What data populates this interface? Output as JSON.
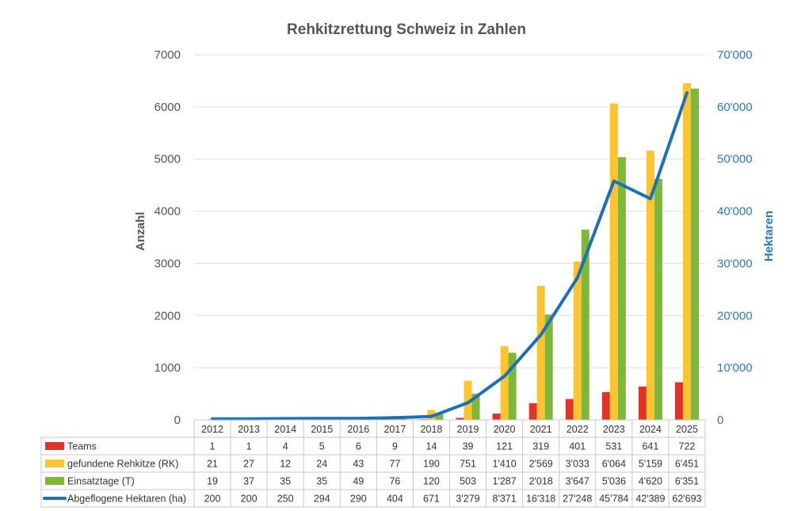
{
  "chart_data": {
    "type": "bar",
    "title": "Rehkitzrettung Schweiz in Zahlen",
    "ylabel": "Anzahl",
    "ylabel_right": "Hektaren",
    "ylim": [
      0,
      7000
    ],
    "ylim_right": [
      0,
      70000
    ],
    "yticks": [
      "0",
      "1000",
      "2000",
      "3000",
      "4000",
      "5000",
      "6000",
      "7000"
    ],
    "yticks_right": [
      "0",
      "10'000",
      "20'000",
      "30'000",
      "40'000",
      "50'000",
      "60'000",
      "70'000"
    ],
    "categories": [
      "2012",
      "2013",
      "2014",
      "2015",
      "2016",
      "2017",
      "2018",
      "2019",
      "2020",
      "2021",
      "2022",
      "2023",
      "2024",
      "2025"
    ],
    "series": [
      {
        "name": "Teams",
        "kind": "bar",
        "axis": "left",
        "color": "#e0342b",
        "values": [
          1,
          1,
          4,
          5,
          6,
          9,
          14,
          39,
          121,
          319,
          401,
          531,
          641,
          722
        ],
        "labels": [
          "1",
          "1",
          "4",
          "5",
          "6",
          "9",
          "14",
          "39",
          "121",
          "319",
          "401",
          "531",
          "641",
          "722"
        ]
      },
      {
        "name": "gefundene Rehkitze (RK)",
        "kind": "bar",
        "axis": "left",
        "color": "#fbc430",
        "values": [
          21,
          27,
          12,
          24,
          43,
          77,
          190,
          751,
          1410,
          2569,
          3033,
          6064,
          5159,
          6451
        ],
        "labels": [
          "21",
          "27",
          "12",
          "24",
          "43",
          "77",
          "190",
          "751",
          "1'410",
          "2'569",
          "3'033",
          "6'064",
          "5'159",
          "6'451"
        ]
      },
      {
        "name": "Einsatztage (T)",
        "kind": "bar",
        "axis": "left",
        "color": "#7db83a",
        "values": [
          19,
          37,
          35,
          35,
          49,
          76,
          120,
          503,
          1287,
          2018,
          3647,
          5036,
          4620,
          6351
        ],
        "labels": [
          "19",
          "37",
          "35",
          "35",
          "49",
          "76",
          "120",
          "503",
          "1'287",
          "2'018",
          "3'647",
          "5'036",
          "4'620",
          "6'351"
        ]
      },
      {
        "name": "Abgeflogene Hektaren (ha)",
        "kind": "line",
        "axis": "right",
        "color": "#1e6fba",
        "values": [
          200,
          200,
          250,
          294,
          290,
          404,
          671,
          3279,
          8371,
          16318,
          27248,
          45784,
          42389,
          62693
        ],
        "labels": [
          "200",
          "200",
          "250",
          "294",
          "290",
          "404",
          "671",
          "3'279",
          "8'371",
          "16'318",
          "27'248",
          "45'784",
          "42'389",
          "62'693"
        ]
      }
    ]
  }
}
